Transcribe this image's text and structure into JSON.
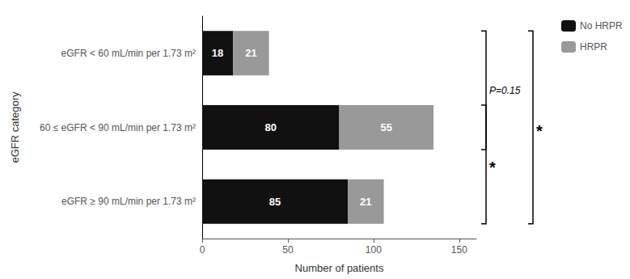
{
  "chart_data": {
    "type": "bar",
    "orientation": "horizontal",
    "stacked": true,
    "categories": [
      "eGFR ≥ 90 mL/min per 1.73 m²",
      "60 ≤ eGFR < 90 mL/min per 1.73 m²",
      "eGFR < 60 mL/min per 1.73 m²"
    ],
    "series": [
      {
        "name": "No HRPR",
        "color": "#111111",
        "values": [
          85,
          80,
          18
        ]
      },
      {
        "name": "HRPR",
        "color": "#999999",
        "values": [
          21,
          55,
          21
        ]
      }
    ],
    "xlim": [
      0,
      160
    ],
    "xticks": [
      0,
      50,
      100,
      150
    ],
    "xlabel": "Number of patients",
    "ylabel": "eGFR category",
    "data_labels": true,
    "grid": false,
    "legend": "upper right",
    "annotations": [
      {
        "text": "P=0.15",
        "from": "eGFR < 60 mL/min per 1.73 m²",
        "to": "60 ≤ eGFR < 90 mL/min per 1.73 m²"
      },
      {
        "text": "*",
        "from": "60 ≤ eGFR < 90 mL/min per 1.73 m²",
        "to": "eGFR ≥ 90 mL/min per 1.73 m²"
      },
      {
        "text": "*",
        "from": "eGFR < 60 mL/min per 1.73 m²",
        "to": "eGFR ≥ 90 mL/min per 1.73 m²"
      }
    ]
  }
}
